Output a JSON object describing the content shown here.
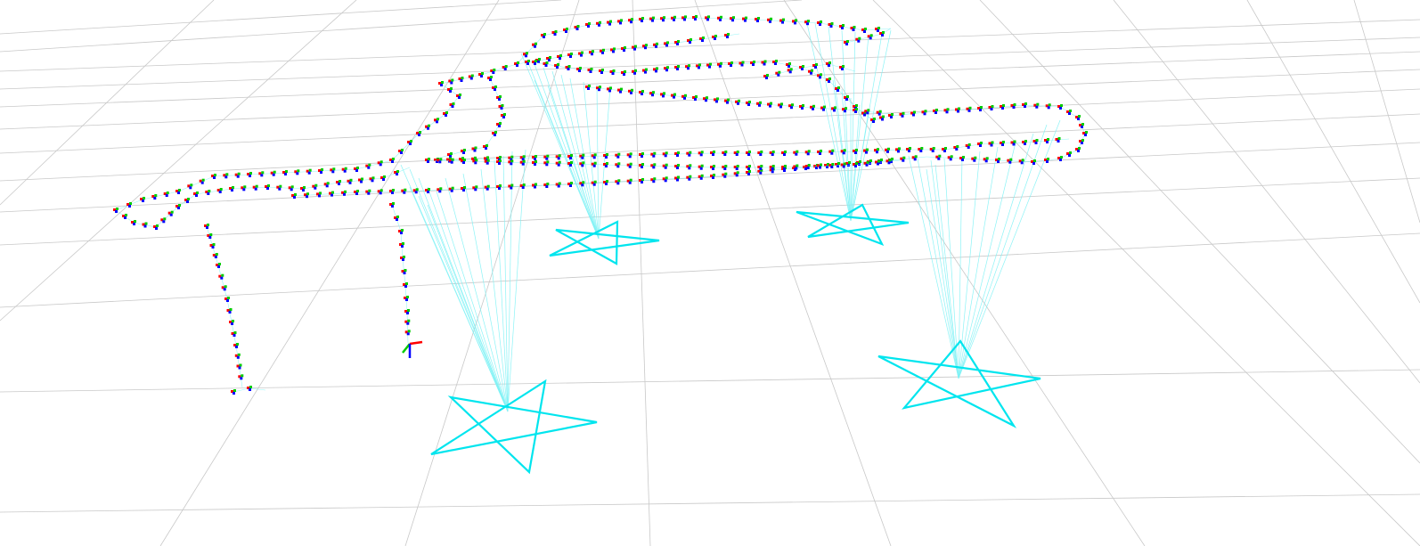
{
  "viewer": {
    "background": "#ffffff",
    "grid_color": "#c8c8c8",
    "landmark_color": "#00e5ee",
    "ray_color": "#7ff2f5",
    "axis_x_color": "#ff0000",
    "axis_y_color": "#00cc00",
    "axis_z_color": "#0000ff",
    "landmark_shape": "star",
    "landmark_count": 4,
    "current_pose_marker": "axes-triad"
  }
}
